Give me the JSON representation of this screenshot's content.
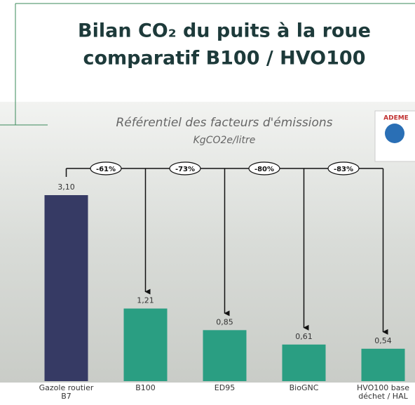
{
  "chart_data": {
    "type": "bar",
    "title": "Bilan CO₂ du puits à la roue",
    "subtitle_line": "comparatif B100 / HVO100",
    "chart_title": "Référentiel des facteurs d'émissions",
    "unit_label": "KgCO2e/litre",
    "logo": "ADEME",
    "categories": [
      "Gazole routier B7",
      "B100",
      "ED95",
      "BioGNC",
      "HVO100 base déchet / HAL"
    ],
    "values": [
      3.1,
      1.21,
      0.85,
      0.61,
      0.54
    ],
    "value_labels": [
      "3,10",
      "1,21",
      "0,85",
      "0,61",
      "0,54"
    ],
    "colors": [
      "#363a64",
      "#2a9e82",
      "#2a9e82",
      "#2a9e82",
      "#2a9e82"
    ],
    "annotations": [
      "-61%",
      "-73%",
      "-80%",
      "-83%"
    ]
  }
}
